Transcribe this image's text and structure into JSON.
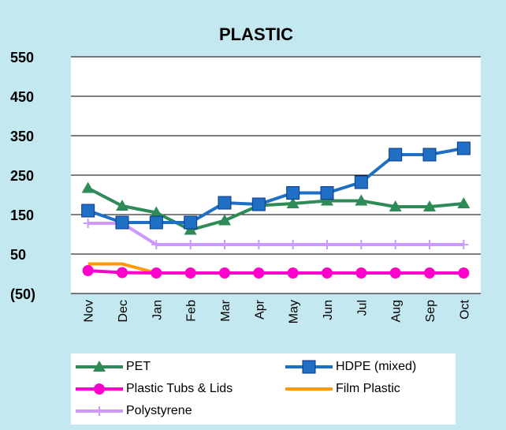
{
  "chart_data": {
    "type": "line",
    "title": "PLASTIC",
    "categories": [
      "Nov",
      "Dec",
      "Jan",
      "Feb",
      "Mar",
      "Apr",
      "May",
      "Jun",
      "Jul",
      "Aug",
      "Sep",
      "Oct"
    ],
    "y_ticks": [
      "550",
      "450",
      "350",
      "250",
      "150",
      "50",
      "(50)"
    ],
    "ylim": [
      -50,
      550
    ],
    "grid": "horizontal",
    "legend_position": "bottom",
    "series": [
      {
        "name": "PET",
        "color": "#2e8b57",
        "marker": "triangle",
        "values": [
          217,
          172,
          155,
          111,
          135,
          173,
          178,
          185,
          185,
          170,
          170,
          178
        ]
      },
      {
        "name": "HDPE (mixed)",
        "color": "#1f6fc5",
        "marker": "square",
        "values": [
          160,
          130,
          130,
          130,
          180,
          176,
          205,
          205,
          232,
          302,
          302,
          318
        ]
      },
      {
        "name": "Plastic Tubs & Lids",
        "color": "#ff00cc",
        "marker": "circle",
        "values": [
          8,
          3,
          2,
          2,
          2,
          2,
          2,
          2,
          2,
          2,
          2,
          2
        ]
      },
      {
        "name": "Film Plastic",
        "color": "#ff9900",
        "marker": "none",
        "values": [
          25,
          25,
          2,
          2,
          2,
          2,
          2,
          2,
          2,
          2,
          2,
          2
        ]
      },
      {
        "name": "Polystyrene",
        "color": "#cc99ff",
        "marker": "plus",
        "values": [
          128,
          128,
          74,
          74,
          74,
          74,
          74,
          74,
          74,
          74,
          74,
          74
        ]
      }
    ]
  }
}
